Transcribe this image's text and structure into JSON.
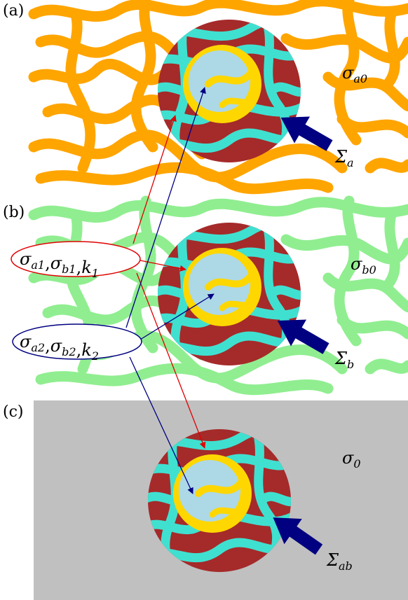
{
  "panels": [
    {
      "label": "(a)",
      "outer": {
        "symbol": "σ",
        "sub": "a0"
      },
      "source": {
        "symbol": "Σ",
        "sub": "a"
      }
    },
    {
      "label": "(b)",
      "outer": {
        "symbol": "σ",
        "sub": "b0"
      },
      "source": {
        "symbol": "Σ",
        "sub": "b"
      }
    },
    {
      "label": "(c)",
      "outer": {
        "symbol": "σ",
        "sub": "0"
      },
      "source": {
        "symbol": "Σ",
        "sub": "ab"
      }
    }
  ],
  "ellipses": [
    {
      "items": [
        {
          "symbol": "σ",
          "sub": "a1"
        },
        {
          "symbol": "σ",
          "sub": "b1"
        },
        {
          "symbol": "k",
          "sub": "1"
        }
      ],
      "separator": ",",
      "color": "#e00000"
    },
    {
      "items": [
        {
          "symbol": "σ",
          "sub": "a2"
        },
        {
          "symbol": "σ",
          "sub": "b2"
        },
        {
          "symbol": "k",
          "sub": "2"
        }
      ],
      "separator": ",",
      "color": "#000080"
    }
  ]
}
